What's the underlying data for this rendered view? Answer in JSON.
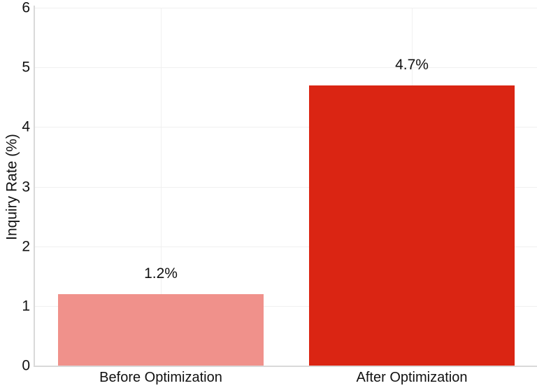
{
  "chart_data": {
    "type": "bar",
    "categories": [
      "Before Optimization",
      "After Optimization"
    ],
    "values": [
      1.2,
      4.7
    ],
    "value_labels": [
      "1.2%",
      "4.7%"
    ],
    "bar_colors": [
      "#F0918B",
      "#DA2513"
    ],
    "title": "",
    "xlabel": "",
    "ylabel": "Inquiry Rate (%)",
    "ylim": [
      0,
      6
    ],
    "yticks": [
      0,
      1,
      2,
      3,
      4,
      5,
      6
    ],
    "legend": "none",
    "grid": {
      "horizontal": true,
      "vertical_at_category_centers": true
    },
    "colors": {
      "background": "#FFFFFF",
      "grid_line": "#F0F0F0",
      "axis_line": "#D9D9D9",
      "text": "#111111"
    }
  }
}
